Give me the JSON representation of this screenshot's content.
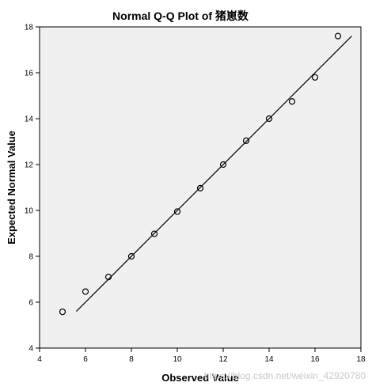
{
  "chart_data": {
    "type": "scatter",
    "title": "Normal Q-Q Plot of 猪崽数",
    "xlabel": "Observed Value",
    "ylabel": "Expected Normal Value",
    "xlim": [
      4,
      18
    ],
    "ylim": [
      4,
      18
    ],
    "xticks": [
      "4",
      "6",
      "8",
      "10",
      "12",
      "14",
      "16",
      "18"
    ],
    "yticks": [
      "4",
      "6",
      "8",
      "10",
      "12",
      "14",
      "16",
      "18"
    ],
    "points": [
      {
        "x": 5,
        "y": 5.58
      },
      {
        "x": 6,
        "y": 6.46
      },
      {
        "x": 7,
        "y": 7.1
      },
      {
        "x": 8,
        "y": 8.0
      },
      {
        "x": 9,
        "y": 8.98
      },
      {
        "x": 10,
        "y": 9.95
      },
      {
        "x": 11,
        "y": 10.97
      },
      {
        "x": 12,
        "y": 12.0
      },
      {
        "x": 13,
        "y": 13.04
      },
      {
        "x": 14,
        "y": 14.0
      },
      {
        "x": 15,
        "y": 14.75
      },
      {
        "x": 16,
        "y": 15.8
      },
      {
        "x": 17,
        "y": 17.6
      }
    ],
    "reference_line": {
      "x": [
        5.6,
        17.6
      ],
      "y": [
        5.6,
        17.6
      ]
    },
    "grid": false,
    "plot_background": "#f0f0f0",
    "marker_color": "#000000"
  },
  "watermark": "https://blog.csdn.net/weixin_42920780"
}
